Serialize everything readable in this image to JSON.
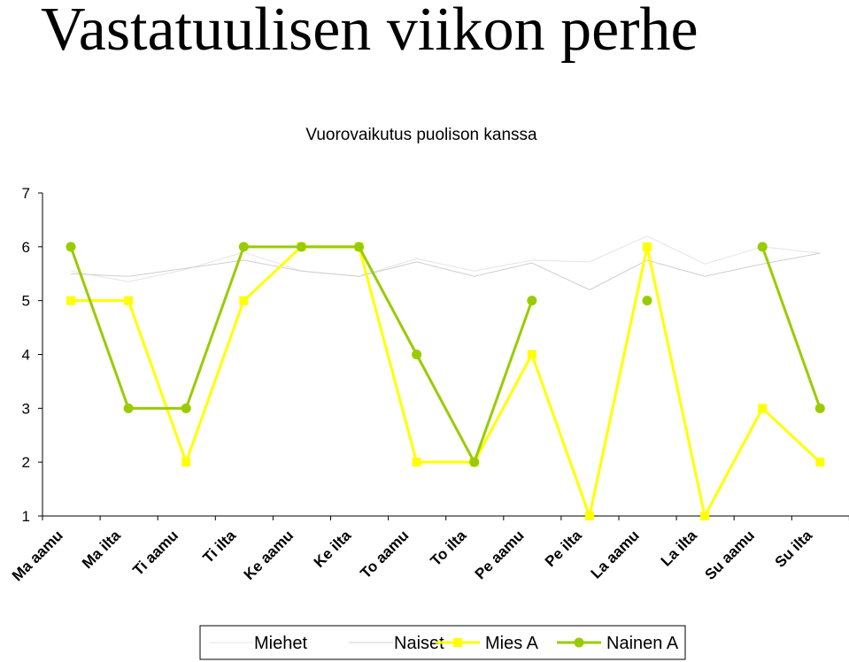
{
  "page": {
    "title": "Vastatuulisen viikon perhe"
  },
  "chart_data": {
    "type": "line",
    "title": "Vuorovaikutus puolison kanssa",
    "xlabel": "",
    "ylabel": "",
    "ylim": [
      1,
      7
    ],
    "yticks": [
      1,
      2,
      3,
      4,
      5,
      6,
      7
    ],
    "grid": false,
    "legend_position": "bottom",
    "categories": [
      "Ma aamu",
      "Ma ilta",
      "Ti aamu",
      "Ti ilta",
      "Ke aamu",
      "Ke ilta",
      "To aamu",
      "To ilta",
      "Pe aamu",
      "Pe ilta",
      "La aamu",
      "La ilta",
      "Su aamu",
      "Su ilta"
    ],
    "series": [
      {
        "name": "Miehet",
        "color": "#e4e4e4",
        "marker": "none",
        "values": [
          5.55,
          5.35,
          5.58,
          5.9,
          5.55,
          5.45,
          5.78,
          5.55,
          5.75,
          5.72,
          6.2,
          5.68,
          6.0,
          5.88
        ]
      },
      {
        "name": "Naiset",
        "color": "#cfcfcf",
        "marker": "none",
        "values": [
          5.5,
          5.45,
          5.6,
          5.75,
          5.55,
          5.45,
          5.72,
          5.45,
          5.7,
          5.2,
          5.75,
          5.45,
          5.68,
          5.88
        ]
      },
      {
        "name": "Mies A",
        "color": "#ffff00",
        "marker": "square",
        "values": [
          5,
          5,
          2,
          5,
          6,
          6,
          2,
          2,
          4,
          1,
          6,
          1,
          3,
          2
        ]
      },
      {
        "name": "Nainen A",
        "color": "#99cc00",
        "marker": "circle",
        "values": [
          6,
          3,
          3,
          6,
          6,
          6,
          4,
          2,
          5,
          null,
          5,
          null,
          6,
          3
        ]
      }
    ]
  }
}
